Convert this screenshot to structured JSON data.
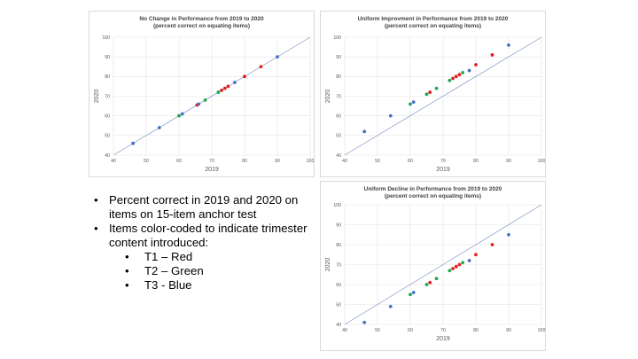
{
  "colors": {
    "T1": "#e41f1f",
    "T2": "#1fa650",
    "T3": "#4472c4",
    "refline": "#7f93c8",
    "grid": "#e3e3e3",
    "axis_text": "#595959"
  },
  "chart_data": [
    {
      "type": "scatter",
      "title": "No Change in Performance from 2019 to 2020",
      "subtitle": "(percent correct on equating items)",
      "xlabel": "2019",
      "ylabel": "2020",
      "xlim": [
        40,
        100
      ],
      "ylim": [
        40,
        100
      ],
      "xticks": [
        "40",
        "50",
        "60",
        "70",
        "80",
        "90",
        "100"
      ],
      "yticks": [
        "40",
        "50",
        "60",
        "70",
        "80",
        "90",
        "100"
      ],
      "reference_line": "y = x",
      "series": [
        {
          "name": "T1",
          "color": "#e41f1f",
          "points": [
            [
              65.5,
              65.5
            ],
            [
              73,
              73
            ],
            [
              74,
              74
            ],
            [
              75,
              75
            ],
            [
              80,
              80
            ],
            [
              85,
              85
            ]
          ]
        },
        {
          "name": "T2",
          "color": "#1fa650",
          "points": [
            [
              60,
              60
            ],
            [
              68,
              68
            ],
            [
              72,
              72
            ]
          ]
        },
        {
          "name": "T3",
          "color": "#4472c4",
          "points": [
            [
              46,
              46
            ],
            [
              54,
              54
            ],
            [
              61,
              61
            ],
            [
              66,
              66
            ],
            [
              77,
              77
            ],
            [
              90,
              90
            ]
          ]
        }
      ]
    },
    {
      "type": "scatter",
      "title": "Uniform Improvment in Performance from 2019 to 2020",
      "subtitle": "(percent correct on equating items)",
      "xlabel": "2019",
      "ylabel": "2020",
      "xlim": [
        40,
        100
      ],
      "ylim": [
        40,
        100
      ],
      "xticks": [
        "40",
        "50",
        "60",
        "70",
        "80",
        "90",
        "100"
      ],
      "yticks": [
        "40",
        "50",
        "60",
        "70",
        "80",
        "90",
        "100"
      ],
      "reference_line": "y = x",
      "series": [
        {
          "name": "T1",
          "color": "#e41f1f",
          "points": [
            [
              66,
              72
            ],
            [
              73,
              79
            ],
            [
              74,
              80
            ],
            [
              75,
              81
            ],
            [
              80,
              86
            ],
            [
              85,
              91
            ]
          ]
        },
        {
          "name": "T2",
          "color": "#1fa650",
          "points": [
            [
              60,
              66
            ],
            [
              65,
              71
            ],
            [
              68,
              74
            ],
            [
              72,
              78
            ],
            [
              76,
              82
            ]
          ]
        },
        {
          "name": "T3",
          "color": "#4472c4",
          "points": [
            [
              46,
              52
            ],
            [
              54,
              60
            ],
            [
              61,
              67
            ],
            [
              78,
              83
            ],
            [
              90,
              96
            ]
          ]
        }
      ]
    },
    {
      "type": "scatter",
      "title": "Uniform Decline in Performance from 2019 to 2020",
      "subtitle": "(percent correct on equating items)",
      "xlabel": "2019",
      "ylabel": "2020",
      "xlim": [
        40,
        100
      ],
      "ylim": [
        40,
        100
      ],
      "xticks": [
        "40",
        "50",
        "60",
        "70",
        "80",
        "90",
        "100"
      ],
      "yticks": [
        "40",
        "50",
        "60",
        "70",
        "80",
        "90",
        "100"
      ],
      "reference_line": "y = x",
      "series": [
        {
          "name": "T1",
          "color": "#e41f1f",
          "points": [
            [
              66,
              61
            ],
            [
              73,
              68
            ],
            [
              74,
              69
            ],
            [
              75,
              70
            ],
            [
              80,
              75
            ],
            [
              85,
              80
            ]
          ]
        },
        {
          "name": "T2",
          "color": "#1fa650",
          "points": [
            [
              60,
              55
            ],
            [
              65,
              60
            ],
            [
              68,
              63
            ],
            [
              72,
              67
            ],
            [
              76,
              71
            ]
          ]
        },
        {
          "name": "T3",
          "color": "#4472c4",
          "points": [
            [
              46,
              41
            ],
            [
              54,
              49
            ],
            [
              61,
              56
            ],
            [
              78,
              72
            ],
            [
              90,
              85
            ]
          ]
        }
      ]
    }
  ],
  "bullets": [
    {
      "text": "Percent correct in 2019 and 2020 on items on 15-item anchor test",
      "sub": []
    },
    {
      "text": "Items color-coded to indicate trimester content introduced:",
      "sub": [
        "T1 – Red",
        "T2 – Green",
        "T3 - Blue"
      ]
    }
  ]
}
